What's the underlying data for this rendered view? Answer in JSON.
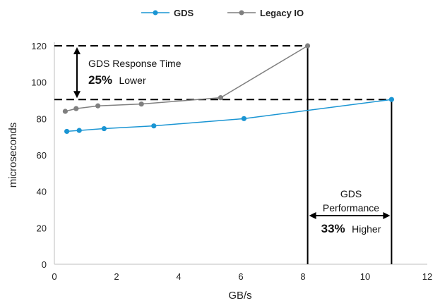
{
  "chart_data": {
    "type": "line",
    "xlabel": "GB/s",
    "ylabel": "microseconds",
    "xlim": [
      0,
      12
    ],
    "ylim": [
      0,
      120
    ],
    "xticks": [
      0,
      2,
      4,
      6,
      8,
      10,
      12
    ],
    "yticks": [
      0,
      20,
      40,
      60,
      80,
      100,
      120
    ],
    "legend_position": "top-center",
    "grid": false,
    "series": [
      {
        "name": "GDS",
        "color": "#1a95d3",
        "x": [
          0.4,
          0.8,
          1.6,
          3.2,
          6.1,
          10.85
        ],
        "y": [
          73,
          73.5,
          74.5,
          76,
          80,
          90.5
        ]
      },
      {
        "name": "Legacy IO",
        "color": "#7f7f7f",
        "x": [
          0.35,
          0.7,
          1.4,
          2.8,
          5.35,
          8.15
        ],
        "y": [
          84,
          85.5,
          87,
          88,
          91.5,
          120
        ]
      }
    ],
    "annotations": {
      "response": {
        "line1": "GDS Response Time",
        "pct": "25%",
        "rest": "Lower"
      },
      "performance": {
        "line1": "GDS",
        "line2": "Performance",
        "pct": "33%",
        "rest": "Higher"
      }
    }
  }
}
